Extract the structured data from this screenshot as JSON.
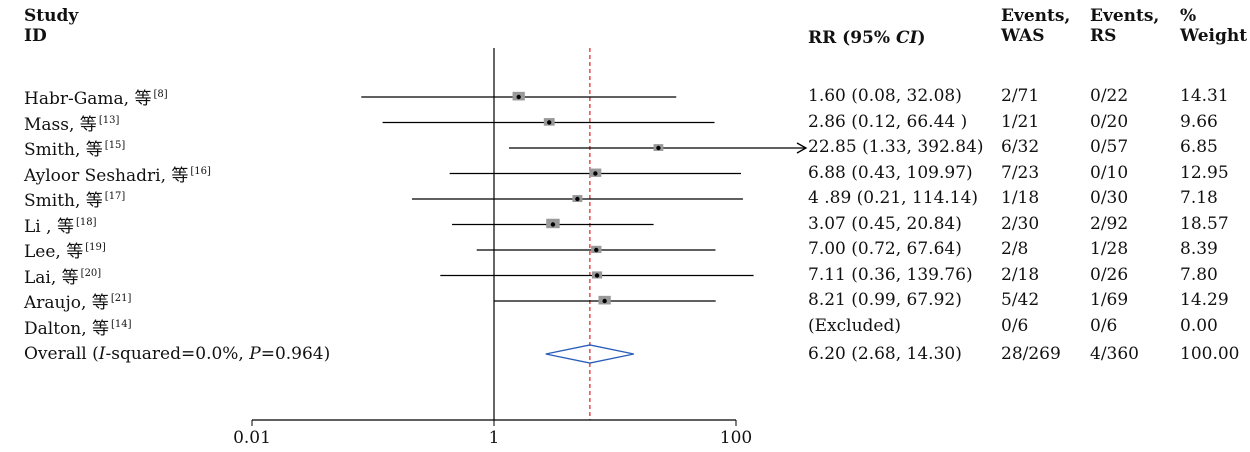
{
  "headers": {
    "study_line1": "Study",
    "study_line2": "ID",
    "rr_prefix": "RR (95% ",
    "rr_italic": "CI",
    "rr_suffix": ")",
    "events_was_line1": "Events,",
    "events_was_line2": "WAS",
    "events_rs_line1": "Events,",
    "events_rs_line2": "RS",
    "weight_line1": "%",
    "weight_line2": "Weight"
  },
  "overall": {
    "label_prefix": "Overall (",
    "label_i": "I",
    "label_mid": "-squared=0.0%, ",
    "label_p": "P",
    "label_suffix": "=0.964)"
  },
  "chart_data": {
    "type": "forest",
    "x_scale": "log",
    "x_ticks": [
      "0.01",
      "1",
      "100"
    ],
    "reference_line": 1,
    "pooled_line": 6.2,
    "studies": [
      {
        "name": "Habr-Gama, 等",
        "ref": "[8]",
        "rr": 1.6,
        "lo": 0.08,
        "hi": 32.08,
        "ci_text": "1.60 (0.08, 32.08)",
        "was": "2/71",
        "rs": "0/22",
        "weight": "14.31",
        "weight_value": 14.31
      },
      {
        "name": "Mass, 等",
        "ref": "[13]",
        "rr": 2.86,
        "lo": 0.12,
        "hi": 66.44,
        "ci_text": "2.86 (0.12, 66.44 )",
        "was": "1/21",
        "rs": "0/20",
        "weight": "9.66",
        "weight_value": 9.66
      },
      {
        "name": "Smith, 等",
        "ref": "[15]",
        "rr": 22.85,
        "lo": 1.33,
        "hi": 392.84,
        "ci_text": "22.85 (1.33, 392.84)",
        "was": "6/32",
        "rs": "0/57",
        "weight": "6.85",
        "weight_value": 6.85,
        "arrow": true
      },
      {
        "name": "Ayloor Seshadri, 等",
        "ref": "[16]",
        "rr": 6.88,
        "lo": 0.43,
        "hi": 109.97,
        "ci_text": "6.88 (0.43, 109.97)",
        "was": "7/23",
        "rs": "0/10",
        "weight": "12.95",
        "weight_value": 12.95
      },
      {
        "name": "Smith, 等",
        "ref": "[17]",
        "rr": 4.89,
        "lo": 0.21,
        "hi": 114.14,
        "ci_text": "4 .89 (0.21, 114.14)",
        "was": "1/18",
        "rs": "0/30",
        "weight": "7.18",
        "weight_value": 7.18
      },
      {
        "name": "Li , 等",
        "ref": "[18]",
        "rr": 3.07,
        "lo": 0.45,
        "hi": 20.84,
        "ci_text": "3.07 (0.45, 20.84)",
        "was": "2/30",
        "rs": "2/92",
        "weight": "18.57",
        "weight_value": 18.57
      },
      {
        "name": "Lee, 等",
        "ref": "[19]",
        "rr": 7.0,
        "lo": 0.72,
        "hi": 67.64,
        "ci_text": "7.00 (0.72, 67.64)",
        "was": "2/8",
        "rs": "1/28",
        "weight": "8.39",
        "weight_value": 8.39
      },
      {
        "name": "Lai, 等",
        "ref": "[20]",
        "rr": 7.11,
        "lo": 0.36,
        "hi": 139.76,
        "ci_text": "7.11 (0.36, 139.76)",
        "was": "2/18",
        "rs": "0/26",
        "weight": "7.80",
        "weight_value": 7.8
      },
      {
        "name": "Araujo, 等",
        "ref": "[21]",
        "rr": 8.21,
        "lo": 0.99,
        "hi": 67.92,
        "ci_text": "8.21 (0.99, 67.92)",
        "was": "5/42",
        "rs": "1/69",
        "weight": "14.29",
        "weight_value": 14.29
      },
      {
        "name": "Dalton, 等",
        "ref": "[14]",
        "rr": null,
        "lo": null,
        "hi": null,
        "ci_text": "(Excluded)",
        "was": "0/6",
        "rs": "0/6",
        "weight": "0.00",
        "weight_value": 0.0
      }
    ],
    "overall": {
      "rr": 6.2,
      "lo": 2.68,
      "hi": 14.3,
      "ci_text": "6.20 (2.68, 14.30)",
      "was": "28/269",
      "rs": "4/360",
      "weight": "100.00"
    }
  }
}
